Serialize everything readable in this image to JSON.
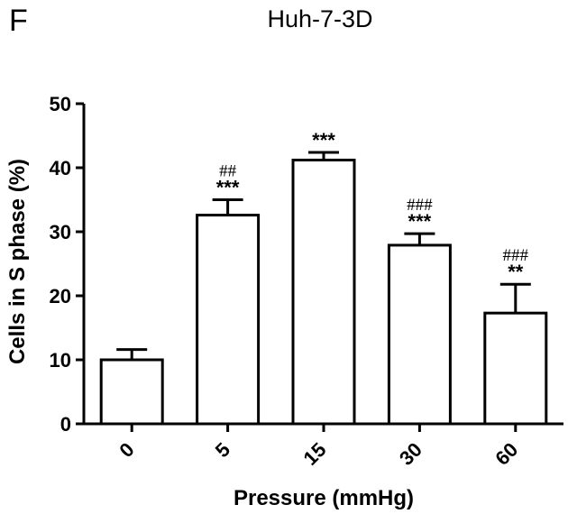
{
  "panel_label": "F",
  "chart_data": {
    "type": "bar",
    "title": "Huh-7-3D",
    "xlabel": "Pressure (mmHg)",
    "ylabel": "Cells in S phase (%)",
    "categories": [
      "0",
      "5",
      "15",
      "30",
      "60"
    ],
    "values": [
      10,
      32.6,
      41.2,
      27.9,
      17.3
    ],
    "error": [
      1.6,
      2.4,
      1.2,
      1.8,
      4.5
    ],
    "significance_stars": [
      "",
      "***",
      "***",
      "***",
      "**"
    ],
    "significance_hash": [
      "",
      "##",
      "",
      "###",
      "###"
    ],
    "ylim": [
      0,
      50
    ],
    "yticks": [
      0,
      10,
      20,
      30,
      40,
      50
    ],
    "grid": false,
    "bar_fill": "#ffffff",
    "bar_stroke": "#000000"
  }
}
